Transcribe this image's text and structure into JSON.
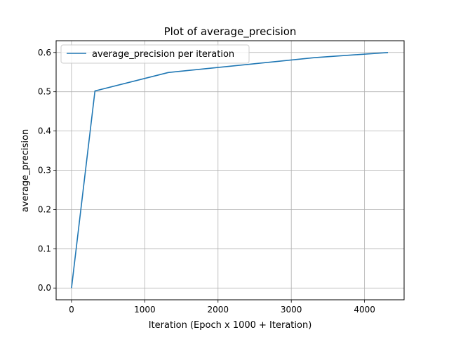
{
  "chart_data": {
    "type": "line",
    "title": "Plot of average_precision",
    "xlabel": "Iteration (Epoch x 1000 + Iteration)",
    "ylabel": "average_precision",
    "xlim": [
      -210,
      4540
    ],
    "ylim": [
      -0.03,
      0.63
    ],
    "xticks": [
      0,
      1000,
      2000,
      3000,
      4000
    ],
    "xtick_labels": [
      "0",
      "1000",
      "2000",
      "3000",
      "4000"
    ],
    "yticks": [
      0.0,
      0.1,
      0.2,
      0.3,
      0.4,
      0.5,
      0.6
    ],
    "ytick_labels": [
      "0.0",
      "0.1",
      "0.2",
      "0.3",
      "0.4",
      "0.5",
      "0.6"
    ],
    "grid": true,
    "legend_position": "upper-left",
    "series": [
      {
        "name": "average_precision per iteration",
        "color": "#1f77b4",
        "x": [
          0,
          320,
          1320,
          2320,
          3320,
          4320
        ],
        "y": [
          0.0,
          0.502,
          0.549,
          0.568,
          0.587,
          0.6
        ]
      }
    ]
  }
}
